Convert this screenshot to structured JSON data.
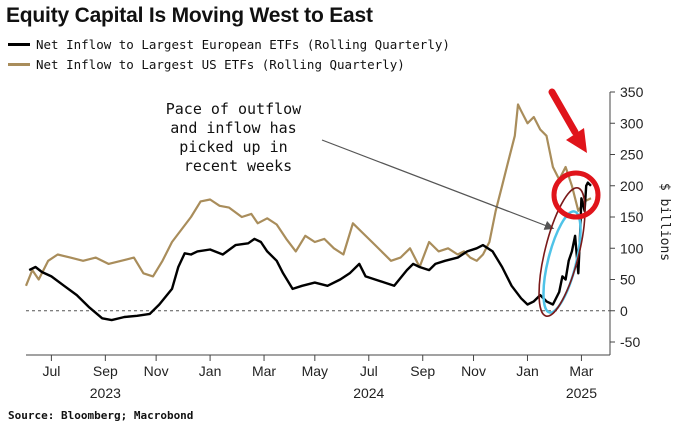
{
  "colors": {
    "european": "#000000",
    "us": "#a98d5b",
    "annotation_red": "#e0141b",
    "highlight": "#4fc3e8"
  },
  "chart_data": {
    "type": "line",
    "title": "Equity Capital Is Moving West to East",
    "ylabel": "$ billions",
    "ylim": [
      -50,
      350
    ],
    "yticks": [
      -50,
      0,
      50,
      100,
      150,
      200,
      250,
      300,
      350
    ],
    "xlim": [
      2023.46,
      2025.3
    ],
    "month_ticks": [
      {
        "label": "Jul",
        "x": 2023.54
      },
      {
        "label": "Sep",
        "x": 2023.71
      },
      {
        "label": "Nov",
        "x": 2023.87
      },
      {
        "label": "Jan",
        "x": 2024.04
      },
      {
        "label": "Mar",
        "x": 2024.21
      },
      {
        "label": "May",
        "x": 2024.37
      },
      {
        "label": "Jul",
        "x": 2024.54
      },
      {
        "label": "Sep",
        "x": 2024.71
      },
      {
        "label": "Nov",
        "x": 2024.87
      },
      {
        "label": "Jan",
        "x": 2025.04
      },
      {
        "label": "Mar",
        "x": 2025.21
      }
    ],
    "year_labels": [
      {
        "label": "2023",
        "x": 2023.71
      },
      {
        "label": "2024",
        "x": 2024.54
      },
      {
        "label": "2025",
        "x": 2025.21
      }
    ],
    "series": [
      {
        "name": "Net Inflow to Largest European ETFs (Rolling Quarterly)",
        "color": "#000000",
        "x": [
          2023.47,
          2023.49,
          2023.51,
          2023.54,
          2023.58,
          2023.62,
          2023.66,
          2023.7,
          2023.73,
          2023.77,
          2023.81,
          2023.85,
          2023.88,
          2023.92,
          2023.94,
          2023.96,
          2023.98,
          2024.0,
          2024.04,
          2024.08,
          2024.12,
          2024.16,
          2024.18,
          2024.2,
          2024.22,
          2024.25,
          2024.27,
          2024.3,
          2024.33,
          2024.37,
          2024.41,
          2024.45,
          2024.48,
          2024.51,
          2024.53,
          2024.56,
          2024.59,
          2024.62,
          2024.66,
          2024.68,
          2024.7,
          2024.73,
          2024.75,
          2024.78,
          2024.82,
          2024.85,
          2024.88,
          2024.9,
          2024.93,
          2024.96,
          2024.99,
          2025.02,
          2025.04,
          2025.06,
          2025.08,
          2025.1,
          2025.12,
          2025.14,
          2025.15,
          2025.16,
          2025.17,
          2025.18,
          2025.19,
          2025.2,
          2025.205,
          2025.21,
          2025.22,
          2025.225,
          2025.23,
          2025.24
        ],
        "values": [
          65,
          70,
          62,
          55,
          40,
          25,
          5,
          -12,
          -15,
          -10,
          -8,
          -5,
          10,
          35,
          70,
          92,
          90,
          95,
          98,
          90,
          105,
          108,
          115,
          110,
          95,
          80,
          60,
          35,
          40,
          45,
          40,
          50,
          60,
          75,
          55,
          50,
          45,
          40,
          65,
          75,
          70,
          65,
          75,
          80,
          85,
          95,
          100,
          105,
          95,
          70,
          40,
          20,
          10,
          15,
          25,
          15,
          10,
          30,
          55,
          50,
          80,
          95,
          120,
          60,
          110,
          180,
          160,
          200,
          205,
          200
        ]
      },
      {
        "name": "Net Inflow to Largest US ETFs (Rolling Quarterly)",
        "color": "#a98d5b",
        "x": [
          2023.46,
          2023.48,
          2023.5,
          2023.53,
          2023.56,
          2023.6,
          2023.64,
          2023.68,
          2023.72,
          2023.76,
          2023.8,
          2023.83,
          2023.86,
          2023.89,
          2023.92,
          2023.95,
          2023.98,
          2024.01,
          2024.04,
          2024.07,
          2024.1,
          2024.14,
          2024.17,
          2024.19,
          2024.22,
          2024.25,
          2024.28,
          2024.31,
          2024.34,
          2024.37,
          2024.4,
          2024.43,
          2024.46,
          2024.49,
          2024.52,
          2024.55,
          2024.58,
          2024.61,
          2024.64,
          2024.67,
          2024.7,
          2024.73,
          2024.76,
          2024.79,
          2024.82,
          2024.84,
          2024.86,
          2024.88,
          2024.9,
          2024.92,
          2024.94,
          2024.96,
          2024.98,
          2025.0,
          2025.01,
          2025.02,
          2025.04,
          2025.06,
          2025.08,
          2025.1,
          2025.12,
          2025.14,
          2025.16,
          2025.18,
          2025.2,
          2025.22,
          2025.24
        ],
        "values": [
          40,
          65,
          50,
          80,
          90,
          85,
          80,
          85,
          75,
          80,
          85,
          60,
          55,
          80,
          110,
          130,
          150,
          175,
          178,
          168,
          165,
          150,
          155,
          140,
          148,
          138,
          115,
          95,
          120,
          110,
          115,
          100,
          90,
          140,
          125,
          110,
          95,
          80,
          85,
          100,
          70,
          110,
          95,
          100,
          90,
          95,
          85,
          80,
          90,
          110,
          160,
          200,
          240,
          280,
          330,
          320,
          300,
          310,
          290,
          280,
          230,
          210,
          230,
          200,
          160,
          175,
          180
        ]
      }
    ],
    "annotation": "Pace of outflow and inflow has picked up in recent weeks"
  },
  "source": "Source: Bloomberg; Macrobond"
}
